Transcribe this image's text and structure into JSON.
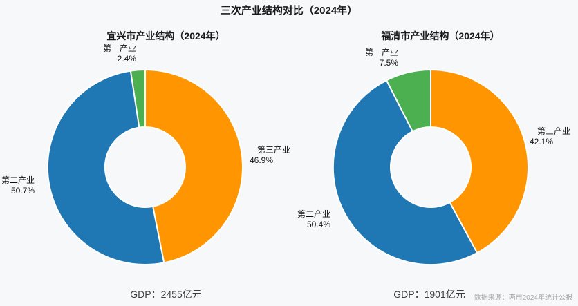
{
  "title": "三次产业结构对比（2024年）",
  "footer": {
    "source_note": "数据来源：两市2024年统计公报"
  },
  "colors": {
    "primary_industry_green": "#4caf50",
    "secondary_industry_blue": "#1f77b4",
    "tertiary_industry_orange": "#ff9500",
    "background": "#f7f8f9",
    "slice_edge": "#ffffff"
  },
  "chart_data": [
    {
      "type": "pie",
      "variant": "donut",
      "title": "宜兴市产业结构（2024年）",
      "start_angle": "top",
      "direction": "counterclockwise",
      "hole_ratio": 0.41,
      "slices": [
        {
          "label": "第一产业",
          "value": 2.4,
          "pct": "2.4%",
          "color": "#4caf50"
        },
        {
          "label": "第二产业",
          "value": 50.7,
          "pct": "50.7%",
          "color": "#1f77b4"
        },
        {
          "label": "第三产业",
          "value": 46.9,
          "pct": "46.9%",
          "color": "#ff9500"
        }
      ],
      "caption": "GDP：2455亿元"
    },
    {
      "type": "pie",
      "variant": "donut",
      "title": "福清市产业结构（2024年）",
      "start_angle": "top",
      "direction": "counterclockwise",
      "hole_ratio": 0.41,
      "slices": [
        {
          "label": "第一产业",
          "value": 7.5,
          "pct": "7.5%",
          "color": "#4caf50"
        },
        {
          "label": "第二产业",
          "value": 50.4,
          "pct": "50.4%",
          "color": "#1f77b4"
        },
        {
          "label": "第三产业",
          "value": 42.1,
          "pct": "42.1%",
          "color": "#ff9500"
        }
      ],
      "caption": "GDP：1901亿元"
    }
  ]
}
